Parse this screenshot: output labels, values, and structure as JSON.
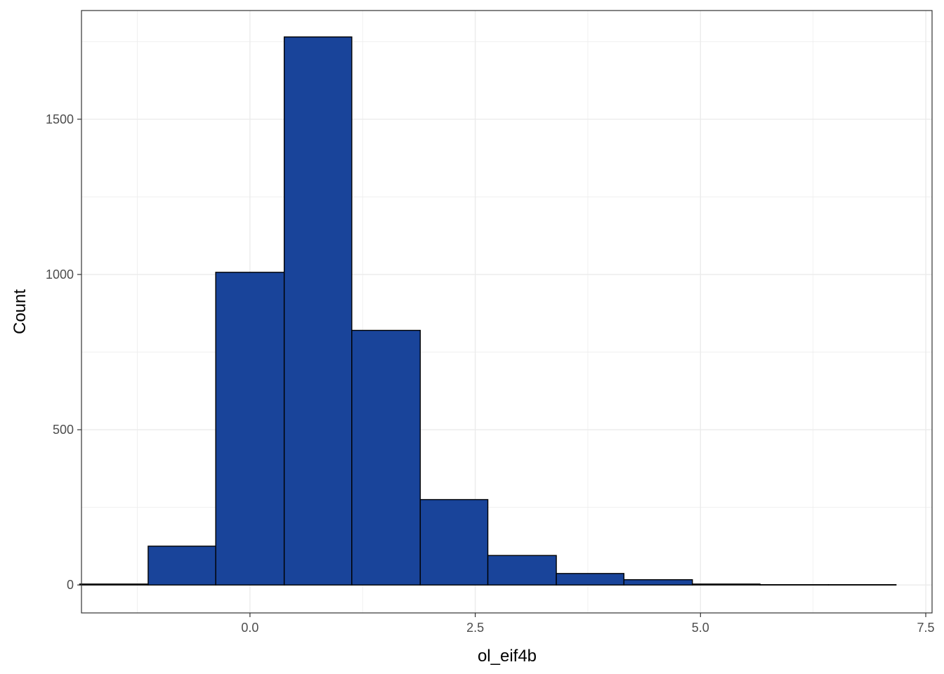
{
  "chart_data": {
    "type": "histogram",
    "title": "",
    "xlabel": "ol_eif4b",
    "ylabel": "Count",
    "xlim": [
      -1.87,
      7.57
    ],
    "ylim": [
      -90,
      1850
    ],
    "x_ticks": [
      0.0,
      2.5,
      5.0,
      7.5
    ],
    "x_tick_labels": [
      "0.0",
      "2.5",
      "5.0",
      "7.5"
    ],
    "y_ticks": [
      0,
      500,
      1000,
      1500
    ],
    "y_tick_labels": [
      "0",
      "500",
      "1000",
      "1500"
    ],
    "grid": true,
    "bin_edges": [
      -1.89,
      -1.13,
      -0.38,
      0.38,
      1.13,
      1.89,
      2.64,
      3.4,
      4.15,
      4.91,
      5.66,
      6.42,
      7.17
    ],
    "counts": [
      3,
      125,
      1007,
      1765,
      820,
      275,
      95,
      37,
      17,
      3,
      1,
      1
    ],
    "colors": {
      "fill": "#19449a",
      "border": "#000000",
      "grid": "#ebebeb",
      "panel_border": "#333333"
    }
  }
}
